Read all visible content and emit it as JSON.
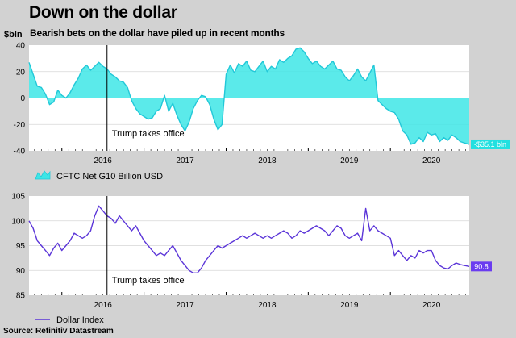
{
  "header": {
    "title": "Down on the dollar",
    "subtitle": "Bearish bets on the dollar have piled up in recent months"
  },
  "source": "Source: Refinitiv Datastream",
  "chart_data": [
    {
      "type": "area",
      "title": "",
      "unit_label": "$bln",
      "ylim": [
        -40,
        40
      ],
      "yticks": [
        -40,
        -20,
        0,
        20,
        40
      ],
      "x_range": [
        2015.6,
        2020.96
      ],
      "year_ticks": [
        "2016",
        "2017",
        "2018",
        "2019",
        "2020"
      ],
      "annotation": {
        "date": 2016.55,
        "label": "Trump takes office"
      },
      "end_label": "-$35.1 bln",
      "color": "#3ee6e6",
      "line_color": "#22c8d8",
      "series": [
        {
          "name": "CFTC Net G10 Billion USD",
          "x": [
            2015.6,
            2015.65,
            2015.7,
            2015.75,
            2015.8,
            2015.85,
            2015.9,
            2015.95,
            2016.0,
            2016.05,
            2016.1,
            2016.15,
            2016.2,
            2016.25,
            2016.3,
            2016.35,
            2016.4,
            2016.45,
            2016.5,
            2016.55,
            2016.6,
            2016.65,
            2016.7,
            2016.75,
            2016.8,
            2016.85,
            2016.9,
            2016.95,
            2017.0,
            2017.05,
            2017.1,
            2017.15,
            2017.2,
            2017.25,
            2017.3,
            2017.35,
            2017.4,
            2017.45,
            2017.5,
            2017.55,
            2017.6,
            2017.65,
            2017.7,
            2017.75,
            2017.8,
            2017.85,
            2017.9,
            2017.95,
            2018.0,
            2018.05,
            2018.1,
            2018.15,
            2018.2,
            2018.25,
            2018.3,
            2018.35,
            2018.4,
            2018.45,
            2018.5,
            2018.55,
            2018.6,
            2018.65,
            2018.7,
            2018.75,
            2018.8,
            2018.85,
            2018.9,
            2018.95,
            2019.0,
            2019.05,
            2019.1,
            2019.15,
            2019.2,
            2019.25,
            2019.3,
            2019.35,
            2019.4,
            2019.45,
            2019.5,
            2019.55,
            2019.6,
            2019.65,
            2019.7,
            2019.75,
            2019.8,
            2019.85,
            2019.9,
            2019.95,
            2020.0,
            2020.05,
            2020.1,
            2020.15,
            2020.2,
            2020.25,
            2020.3,
            2020.35,
            2020.4,
            2020.45,
            2020.5,
            2020.55,
            2020.6,
            2020.65,
            2020.7,
            2020.75,
            2020.8,
            2020.85,
            2020.9,
            2020.96
          ],
          "values": [
            27,
            18,
            9,
            8,
            3,
            -5,
            -3,
            6,
            2,
            0,
            4,
            10,
            15,
            22,
            25,
            21,
            24,
            27,
            24,
            22,
            18,
            16,
            13,
            12,
            8,
            -2,
            -8,
            -12,
            -14,
            -16,
            -15,
            -10,
            -8,
            2,
            -10,
            -4,
            -13,
            -20,
            -25,
            -18,
            -8,
            -2,
            2,
            1,
            -5,
            -16,
            -24,
            -20,
            18,
            25,
            19,
            26,
            24,
            28,
            21,
            20,
            24,
            28,
            20,
            24,
            22,
            29,
            27,
            30,
            32,
            37,
            38,
            35,
            30,
            26,
            28,
            24,
            22,
            25,
            28,
            22,
            21,
            16,
            13,
            17,
            22,
            16,
            13,
            19,
            25,
            -2,
            -5,
            -8,
            -10,
            -11,
            -16,
            -25,
            -28,
            -35,
            -34,
            -30,
            -33,
            -26,
            -28,
            -27,
            -33,
            -30,
            -32,
            -28,
            -30,
            -33,
            -34,
            -35.1
          ]
        }
      ]
    },
    {
      "type": "line",
      "title": "",
      "ylim": [
        85,
        105
      ],
      "yticks": [
        85,
        90,
        95,
        100,
        105
      ],
      "x_range": [
        2015.6,
        2020.96
      ],
      "year_ticks": [
        "2016",
        "2017",
        "2018",
        "2019",
        "2020"
      ],
      "annotation": {
        "date": 2016.55,
        "label": "Trump takes office"
      },
      "end_label": "90.8",
      "color": "#5b35d8",
      "series": [
        {
          "name": "Dollar Index",
          "x": [
            2015.6,
            2015.65,
            2015.7,
            2015.75,
            2015.8,
            2015.85,
            2015.9,
            2015.95,
            2016.0,
            2016.05,
            2016.1,
            2016.15,
            2016.2,
            2016.25,
            2016.3,
            2016.35,
            2016.4,
            2016.45,
            2016.5,
            2016.55,
            2016.6,
            2016.65,
            2016.7,
            2016.75,
            2016.8,
            2016.85,
            2016.9,
            2016.95,
            2017.0,
            2017.05,
            2017.1,
            2017.15,
            2017.2,
            2017.25,
            2017.3,
            2017.35,
            2017.4,
            2017.45,
            2017.5,
            2017.55,
            2017.6,
            2017.65,
            2017.7,
            2017.75,
            2017.8,
            2017.85,
            2017.9,
            2017.95,
            2018.0,
            2018.05,
            2018.1,
            2018.15,
            2018.2,
            2018.25,
            2018.3,
            2018.35,
            2018.4,
            2018.45,
            2018.5,
            2018.55,
            2018.6,
            2018.65,
            2018.7,
            2018.75,
            2018.8,
            2018.85,
            2018.9,
            2018.95,
            2019.0,
            2019.05,
            2019.1,
            2019.15,
            2019.2,
            2019.25,
            2019.3,
            2019.35,
            2019.4,
            2019.45,
            2019.5,
            2019.55,
            2019.6,
            2019.65,
            2019.7,
            2019.75,
            2019.8,
            2019.85,
            2019.9,
            2019.95,
            2020.0,
            2020.05,
            2020.1,
            2020.15,
            2020.2,
            2020.25,
            2020.3,
            2020.35,
            2020.4,
            2020.45,
            2020.5,
            2020.55,
            2020.6,
            2020.65,
            2020.7,
            2020.75,
            2020.8,
            2020.85,
            2020.9,
            2020.96
          ],
          "values": [
            100,
            98.5,
            96,
            95,
            94,
            93,
            94.5,
            95.5,
            94,
            95,
            96,
            97.5,
            97,
            96.5,
            97,
            98,
            101,
            103,
            102,
            101,
            100.5,
            99.5,
            101,
            100,
            99,
            98,
            99,
            97.5,
            96,
            95,
            94,
            93,
            93.5,
            93,
            94,
            95,
            93.5,
            92,
            91,
            90,
            89.5,
            89.5,
            90.5,
            92,
            93,
            94,
            95,
            94.5,
            95,
            95.5,
            96,
            96.5,
            97,
            96.5,
            97,
            97.5,
            97,
            96.5,
            97,
            96.5,
            97,
            97.5,
            98,
            97.5,
            96.5,
            97,
            98,
            97.5,
            98,
            98.5,
            99,
            98.5,
            98,
            97,
            98,
            99,
            98.5,
            97,
            96.5,
            97,
            97.5,
            96,
            102.5,
            98,
            99,
            98,
            97.5,
            97,
            96.5,
            93,
            94,
            93,
            92,
            93,
            92.5,
            94,
            93.5,
            94,
            94,
            92,
            91,
            90.5,
            90.3,
            91,
            91.5,
            91.2,
            91,
            90.8
          ]
        }
      ]
    }
  ]
}
